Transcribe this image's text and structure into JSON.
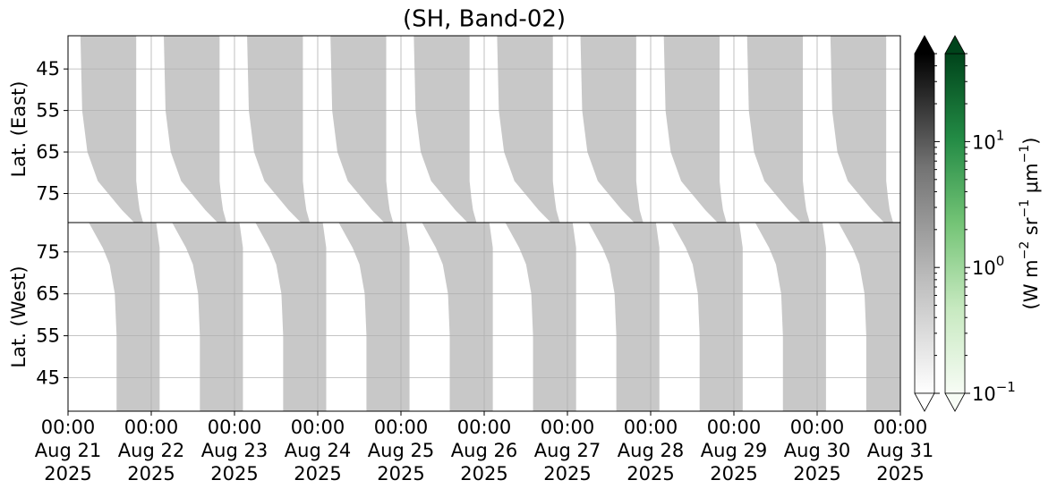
{
  "chart_data": {
    "type": "swath-heatmap",
    "title": "(SH, Band-02)",
    "xlim": [
      "2025-08-21 00:00",
      "2025-08-31 00:00"
    ],
    "xticks": [
      {
        "value": "2025-08-21 00:00",
        "label": [
          "00:00",
          "Aug 21",
          "2025"
        ]
      },
      {
        "value": "2025-08-22 00:00",
        "label": [
          "00:00",
          "Aug 22",
          "2025"
        ]
      },
      {
        "value": "2025-08-23 00:00",
        "label": [
          "00:00",
          "Aug 23",
          "2025"
        ]
      },
      {
        "value": "2025-08-24 00:00",
        "label": [
          "00:00",
          "Aug 24",
          "2025"
        ]
      },
      {
        "value": "2025-08-25 00:00",
        "label": [
          "00:00",
          "Aug 25",
          "2025"
        ]
      },
      {
        "value": "2025-08-26 00:00",
        "label": [
          "00:00",
          "Aug 26",
          "2025"
        ]
      },
      {
        "value": "2025-08-27 00:00",
        "label": [
          "00:00",
          "Aug 27",
          "2025"
        ]
      },
      {
        "value": "2025-08-28 00:00",
        "label": [
          "00:00",
          "Aug 28",
          "2025"
        ]
      },
      {
        "value": "2025-08-29 00:00",
        "label": [
          "00:00",
          "Aug 29",
          "2025"
        ]
      },
      {
        "value": "2025-08-30 00:00",
        "label": [
          "00:00",
          "Aug 30",
          "2025"
        ]
      },
      {
        "value": "2025-08-31 00:00",
        "label": [
          "00:00",
          "Aug 31",
          "2025"
        ]
      }
    ],
    "grid": true,
    "swath_color": "#c8c8c8",
    "panels": [
      {
        "ylabel": "Lat. (East)",
        "ylim": [
          37,
          82
        ],
        "y_inverted": true,
        "yticks": [
          45,
          55,
          65,
          75
        ],
        "edge_lats": [
          37,
          55,
          65,
          72,
          76,
          79,
          82
        ],
        "left_delay_hours": [
          0,
          0.5,
          2,
          5,
          9,
          12,
          15.5
        ],
        "right_delay_hours": [
          0,
          0,
          0,
          0,
          0.5,
          1,
          2
        ],
        "swaths": [
          {
            "start": "2025-08-21 03:35",
            "end": "2025-08-21 19:40"
          },
          {
            "start": "2025-08-22 03:37",
            "end": "2025-08-22 19:42"
          },
          {
            "start": "2025-08-23 03:38",
            "end": "2025-08-23 19:43"
          },
          {
            "start": "2025-08-24 03:40",
            "end": "2025-08-24 19:45"
          },
          {
            "start": "2025-08-25 03:42",
            "end": "2025-08-25 19:47"
          },
          {
            "start": "2025-08-26 03:43",
            "end": "2025-08-26 19:48"
          },
          {
            "start": "2025-08-27 03:45",
            "end": "2025-08-27 19:50"
          },
          {
            "start": "2025-08-28 03:47",
            "end": "2025-08-28 19:52"
          },
          {
            "start": "2025-08-29 03:48",
            "end": "2025-08-29 19:53"
          },
          {
            "start": "2025-08-30 03:50",
            "end": "2025-08-30 19:55"
          }
        ]
      },
      {
        "ylabel": "Lat. (West)",
        "ylim": [
          37,
          82
        ],
        "y_inverted": false,
        "yticks": [
          45,
          55,
          65,
          75
        ],
        "edge_lats": [
          37,
          55,
          65,
          72,
          76,
          79,
          82
        ],
        "left_delay_hours": [
          0,
          0,
          -0.5,
          -2,
          -4,
          -6,
          -8
        ],
        "right_delay_hours": [
          0,
          0,
          0,
          0,
          0,
          -0.5,
          -1
        ],
        "swaths": [
          {
            "start": "2025-08-21 14:00",
            "end": "2025-08-22 02:25"
          },
          {
            "start": "2025-08-22 14:01",
            "end": "2025-08-23 02:26"
          },
          {
            "start": "2025-08-23 14:02",
            "end": "2025-08-24 02:27"
          },
          {
            "start": "2025-08-24 14:03",
            "end": "2025-08-25 02:28"
          },
          {
            "start": "2025-08-25 14:04",
            "end": "2025-08-26 02:29"
          },
          {
            "start": "2025-08-26 14:05",
            "end": "2025-08-27 02:30"
          },
          {
            "start": "2025-08-27 14:06",
            "end": "2025-08-28 02:31"
          },
          {
            "start": "2025-08-28 14:07",
            "end": "2025-08-29 02:32"
          },
          {
            "start": "2025-08-29 14:08",
            "end": "2025-08-30 02:33"
          },
          {
            "start": "2025-08-30 14:10",
            "end": "2025-08-31 02:35"
          }
        ]
      }
    ],
    "colorbars": [
      {
        "colors": [
          "#ffffff",
          "#bdbdbd",
          "#737373",
          "#000000"
        ]
      },
      {
        "colors": [
          "#f7fcf5",
          "#c7e9c0",
          "#74c476",
          "#238b45",
          "#00441b"
        ]
      }
    ],
    "clim": [
      0.1,
      50
    ],
    "clog": true,
    "cticks": [
      {
        "value": 0.1,
        "label": {
          "base": "10",
          "exponent": "−1"
        }
      },
      {
        "value": 1,
        "label": {
          "base": "10",
          "exponent": "0"
        }
      },
      {
        "value": 10,
        "label": {
          "base": "10",
          "exponent": "1"
        }
      }
    ],
    "cticks_minor": [
      0.2,
      0.3,
      0.4,
      0.5,
      0.6,
      0.7,
      0.8,
      0.9,
      2,
      3,
      4,
      5,
      6,
      7,
      8,
      9,
      20,
      30,
      40,
      50
    ],
    "clabel": [
      {
        "text": "(W m"
      },
      {
        "sup": "−2"
      },
      {
        "text": " sr"
      },
      {
        "sup": "−1"
      },
      {
        "text": " μm"
      },
      {
        "sup": "−1"
      },
      {
        "text": ")"
      }
    ]
  }
}
